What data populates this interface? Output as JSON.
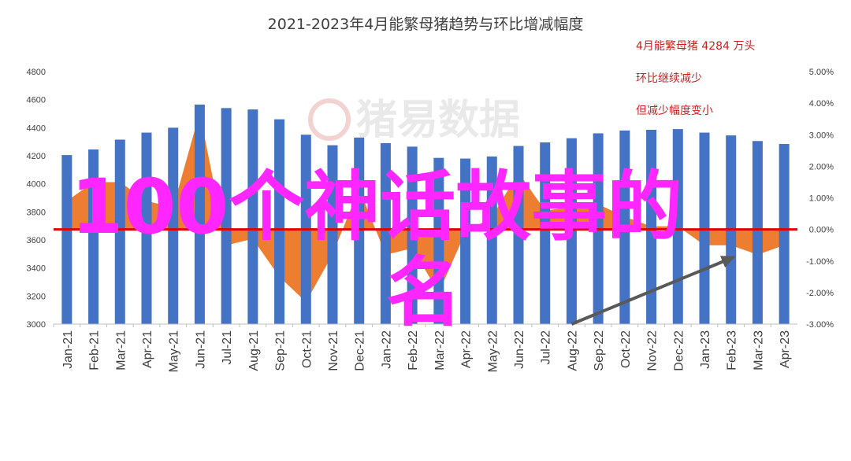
{
  "chart_data": {
    "type": "bar",
    "title": "2021-2023年4月能繁母猪趋势与环比增减幅度",
    "categories": [
      "Jan-21",
      "Feb-21",
      "Mar-21",
      "Apr-21",
      "May-21",
      "Jun-21",
      "Jul-21",
      "Aug-21",
      "Sep-21",
      "Oct-21",
      "Nov-21",
      "Dec-21",
      "Jan-22",
      "Feb-22",
      "Mar-22",
      "Apr-22",
      "May-22",
      "Jun-22",
      "Jul-22",
      "Aug-22",
      "Sep-22",
      "Oct-22",
      "Nov-22",
      "Dec-22",
      "Jan-23",
      "Feb-23",
      "Mar-23",
      "Apr-23"
    ],
    "series": [
      {
        "type": "bar",
        "axis": "left",
        "color": "#4472c4",
        "values": [
          4205,
          4245,
          4315,
          4365,
          4400,
          4565,
          4540,
          4530,
          4460,
          4350,
          4275,
          4330,
          4290,
          4265,
          4185,
          4180,
          4195,
          4270,
          4295,
          4325,
          4360,
          4380,
          4385,
          4390,
          4365,
          4345,
          4305,
          4284
        ]
      },
      {
        "type": "area",
        "axis": "right",
        "color": "#ed7d31",
        "values": [
          0.9,
          1.5,
          1.5,
          0.9,
          0.7,
          3.7,
          -0.5,
          -0.3,
          -1.5,
          -2.3,
          -0.8,
          1.3,
          -0.8,
          -0.6,
          -2.0,
          -0.1,
          0.4,
          1.8,
          0.6,
          0.7,
          0.8,
          0.4,
          0.1,
          0.1,
          -0.5,
          -0.5,
          -0.8,
          -0.5
        ]
      }
    ],
    "ylim_left": [
      3000,
      4800
    ],
    "yticks_left": [
      "3000",
      "3200",
      "3400",
      "3600",
      "3800",
      "4000",
      "4200",
      "4400",
      "4600",
      "4800"
    ],
    "ylim_right": [
      -3.0,
      5.0
    ],
    "yticks_right": [
      "-3.00%",
      "-2.00%",
      "-1.00%",
      "0.00%",
      "1.00%",
      "2.00%",
      "3.00%",
      "4.00%",
      "5.00%"
    ],
    "reference_line": {
      "value": 0,
      "axis": "right",
      "color": "#e00000"
    },
    "trend_arrow": {
      "from": [
        "Aug-22",
        -3.0
      ],
      "to": [
        "Feb-23",
        -1.0
      ],
      "color": "#595959"
    },
    "annotations": [
      "4月能繁母猪 4284 万头",
      "环比继续减少",
      "但减少幅度变小"
    ],
    "annotation_color": "#cc1f1f",
    "watermark": "猪易数据",
    "overlay": {
      "line1": "100个神话故事的",
      "line2": "名",
      "color": "#ff26ff"
    },
    "grid": false,
    "legend": "none"
  }
}
